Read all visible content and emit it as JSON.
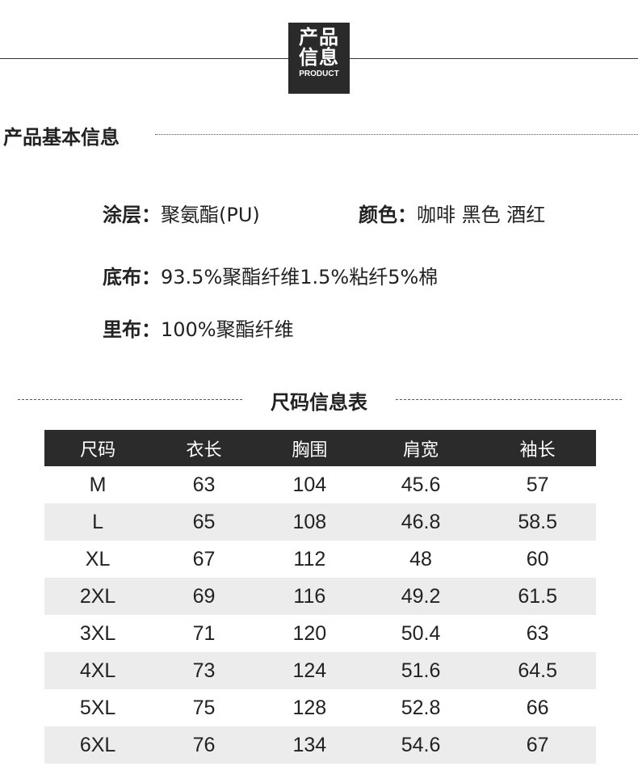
{
  "header": {
    "badge_line1": "产品",
    "badge_line2": "信息",
    "badge_sub": "PRODUCT"
  },
  "basic": {
    "title": "产品基本信息",
    "coating_label": "涂层：",
    "coating": "聚氨酯(PU)",
    "color_label": "颜色：",
    "color": "咖啡 黑色 酒红",
    "base_label": "底布：",
    "base": "93.5%聚酯纤维1.5%粘纤5%棉",
    "lining_label": "里布：",
    "lining": "100%聚酯纤维"
  },
  "size": {
    "title": "尺码信息表",
    "headers": [
      "尺码",
      "衣长",
      "胸围",
      "肩宽",
      "袖长"
    ],
    "rows": [
      [
        "M",
        "63",
        "104",
        "45.6",
        "57"
      ],
      [
        "L",
        "65",
        "108",
        "46.8",
        "58.5"
      ],
      [
        "XL",
        "67",
        "112",
        "48",
        "60"
      ],
      [
        "2XL",
        "69",
        "116",
        "49.2",
        "61.5"
      ],
      [
        "3XL",
        "71",
        "120",
        "50.4",
        "63"
      ],
      [
        "4XL",
        "73",
        "124",
        "51.6",
        "64.5"
      ],
      [
        "5XL",
        "75",
        "128",
        "52.8",
        "66"
      ],
      [
        "6XL",
        "76",
        "134",
        "54.6",
        "67"
      ]
    ]
  }
}
